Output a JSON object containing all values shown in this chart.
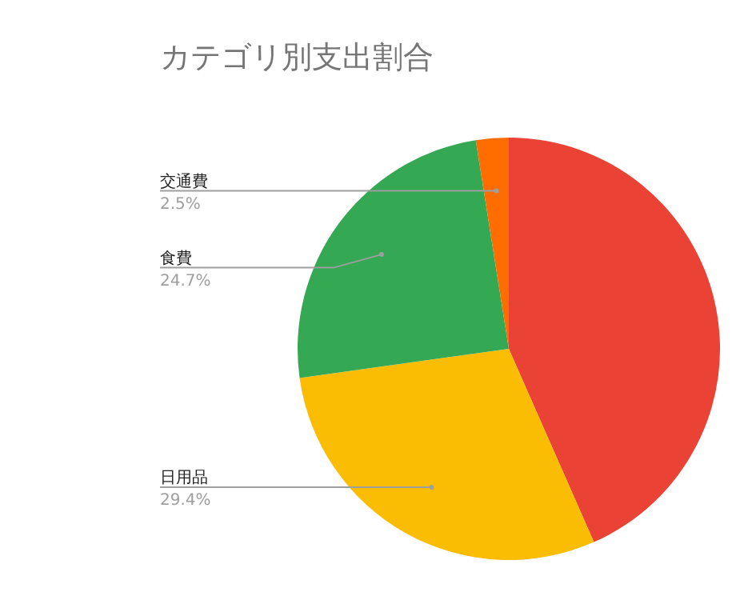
{
  "chart_data": {
    "type": "pie",
    "title": "カテゴリ別支出割合",
    "categories": [
      null,
      "日用品",
      "食費",
      "交通費"
    ],
    "values": [
      43.4,
      29.4,
      24.7,
      2.5
    ],
    "colors": [
      "#ea4335",
      "#fbbc04",
      "#34a853",
      "#ff6d01"
    ],
    "value_labels": [
      null,
      "29.4%",
      "24.7%",
      "2.5%"
    ]
  }
}
